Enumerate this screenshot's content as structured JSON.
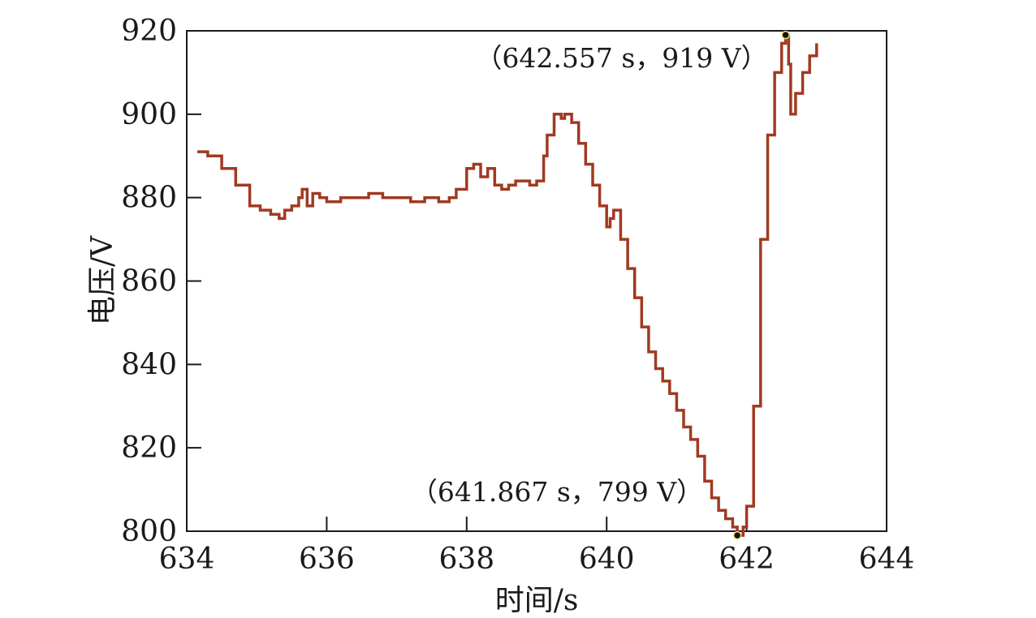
{
  "chart_data": {
    "type": "line",
    "xlabel": "时间/s",
    "ylabel": "电压/V",
    "xlim": [
      634,
      644
    ],
    "ylim": [
      800,
      920
    ],
    "x_ticks": [
      634,
      636,
      638,
      640,
      642,
      644
    ],
    "y_ticks": [
      800,
      820,
      840,
      860,
      880,
      900,
      920
    ],
    "x_tick_labels": [
      "634",
      "636",
      "638",
      "640",
      "642",
      "644"
    ],
    "y_tick_labels": [
      "800",
      "820",
      "840",
      "860",
      "880",
      "900",
      "920"
    ],
    "grid": false,
    "line_color": "#a03a22",
    "series": [
      {
        "x": [
          634.15,
          634.3,
          634.5,
          634.7,
          634.9,
          635.05,
          635.2,
          635.32,
          635.4,
          635.5,
          635.6,
          635.65,
          635.72,
          635.8,
          635.9,
          636.0,
          636.2,
          636.4,
          636.6,
          636.8,
          637.0,
          637.2,
          637.4,
          637.6,
          637.75,
          637.85,
          638.0,
          638.1,
          638.2,
          638.3,
          638.4,
          638.5,
          638.6,
          638.7,
          638.8,
          638.9,
          639.0,
          639.1,
          639.15,
          639.25,
          639.35,
          639.4,
          639.5,
          639.6,
          639.7,
          639.8,
          639.9,
          640.0,
          640.05,
          640.1,
          640.2,
          640.3,
          640.4,
          640.5,
          640.6,
          640.7,
          640.8,
          640.9,
          641.0,
          641.1,
          641.2,
          641.3,
          641.4,
          641.5,
          641.6,
          641.7,
          641.8,
          641.867,
          641.95,
          642.0,
          642.1,
          642.2,
          642.3,
          642.4,
          642.5,
          642.557,
          642.6,
          642.63,
          642.7,
          642.8,
          642.9,
          643.0
        ],
        "y": [
          891,
          890,
          887,
          883,
          878,
          877,
          876,
          875,
          877,
          878,
          880,
          882,
          878,
          881,
          880,
          879,
          880,
          880,
          881,
          880,
          880,
          879,
          880,
          879,
          880,
          882,
          887,
          888,
          885,
          887,
          883,
          882,
          883,
          884,
          884,
          883,
          884,
          890,
          895,
          900,
          899,
          900,
          898,
          893,
          888,
          883,
          878,
          873,
          875,
          877,
          870,
          863,
          856,
          849,
          843,
          839,
          836,
          833,
          829,
          825,
          822,
          818,
          812,
          808,
          805,
          803,
          801,
          799,
          801,
          806,
          830,
          870,
          895,
          910,
          917,
          919,
          912,
          900,
          905,
          910,
          914,
          917
        ]
      }
    ],
    "annotations": [
      {
        "x": 642.557,
        "y": 919,
        "label": "（642.557 s，919 V）"
      },
      {
        "x": 641.867,
        "y": 799,
        "label": "（641.867 s，799 V）"
      }
    ]
  }
}
